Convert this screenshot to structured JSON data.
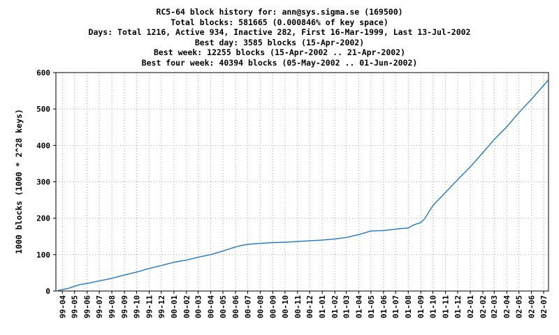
{
  "chart_data": {
    "type": "line",
    "title_lines": [
      "RC5-64 block history for: ann@sys.sigma.se (169500)",
      "Total blocks: 581665 (0.000846% of key space)",
      "Days: Total 1216,  Active 934, Inactive 282, First 16-Mar-1999, Last 13-Jul-2002",
      "Best day: 3585 blocks (15-Apr-2002)",
      "Best week: 12255 blocks (15-Apr-2002 .. 21-Apr-2002)",
      "Best four week: 40394 blocks (05-May-2002 .. 01-Jun-2002)"
    ],
    "xlabel": "",
    "ylabel": "1000 blocks (1000 * 2^28 keys)",
    "ylim": [
      0,
      600
    ],
    "yticks": [
      0,
      100,
      200,
      300,
      400,
      500,
      600
    ],
    "grid": true,
    "legend": "none",
    "line_color": "#1f77c4",
    "xlim": [
      "1999-03-16",
      "2002-07-13"
    ],
    "xticks": [
      {
        "date": "1999-04-01",
        "label": "99-04"
      },
      {
        "date": "1999-05-01",
        "label": "99-05"
      },
      {
        "date": "1999-06-01",
        "label": "99-06"
      },
      {
        "date": "1999-07-01",
        "label": "99-07"
      },
      {
        "date": "1999-08-01",
        "label": "99-08"
      },
      {
        "date": "1999-09-01",
        "label": "99-09"
      },
      {
        "date": "1999-10-01",
        "label": "99-10"
      },
      {
        "date": "1999-11-01",
        "label": "99-11"
      },
      {
        "date": "1999-12-01",
        "label": "99-12"
      },
      {
        "date": "2000-01-01",
        "label": "00-01"
      },
      {
        "date": "2000-02-01",
        "label": "00-02"
      },
      {
        "date": "2000-03-01",
        "label": "00-03"
      },
      {
        "date": "2000-04-01",
        "label": "00-04"
      },
      {
        "date": "2000-05-01",
        "label": "00-05"
      },
      {
        "date": "2000-06-01",
        "label": "00-06"
      },
      {
        "date": "2000-07-01",
        "label": "00-07"
      },
      {
        "date": "2000-08-01",
        "label": "00-08"
      },
      {
        "date": "2000-09-01",
        "label": "00-09"
      },
      {
        "date": "2000-10-01",
        "label": "00-10"
      },
      {
        "date": "2000-11-01",
        "label": "00-11"
      },
      {
        "date": "2000-12-01",
        "label": "00-12"
      },
      {
        "date": "2001-01-01",
        "label": "01-01"
      },
      {
        "date": "2001-02-01",
        "label": "01-02"
      },
      {
        "date": "2001-03-01",
        "label": "01-03"
      },
      {
        "date": "2001-04-01",
        "label": "01-04"
      },
      {
        "date": "2001-05-01",
        "label": "01-05"
      },
      {
        "date": "2001-06-01",
        "label": "01-06"
      },
      {
        "date": "2001-07-01",
        "label": "01-07"
      },
      {
        "date": "2001-08-01",
        "label": "01-08"
      },
      {
        "date": "2001-09-01",
        "label": "01-09"
      },
      {
        "date": "2001-10-01",
        "label": "01-10"
      },
      {
        "date": "2001-11-01",
        "label": "01-11"
      },
      {
        "date": "2001-12-01",
        "label": "01-12"
      },
      {
        "date": "2002-01-01",
        "label": "02-01"
      },
      {
        "date": "2002-02-01",
        "label": "02-02"
      },
      {
        "date": "2002-03-01",
        "label": "02-03"
      },
      {
        "date": "2002-04-01",
        "label": "02-04"
      },
      {
        "date": "2002-05-01",
        "label": "02-05"
      },
      {
        "date": "2002-06-01",
        "label": "02-06"
      },
      {
        "date": "2002-07-01",
        "label": "02-07"
      }
    ],
    "series": [
      {
        "x": [
          "1999-03-16",
          "1999-04-01",
          "1999-04-15",
          "1999-05-01",
          "1999-05-15",
          "1999-06-01",
          "1999-06-15",
          "1999-07-01",
          "1999-07-15",
          "1999-08-01",
          "1999-09-01",
          "1999-10-01",
          "1999-11-01",
          "1999-12-01",
          "2000-01-01",
          "2000-02-01",
          "2000-03-01",
          "2000-04-01",
          "2000-05-01",
          "2000-05-15",
          "2000-06-01",
          "2000-06-15",
          "2000-07-01",
          "2000-08-01",
          "2000-09-01",
          "2000-10-01",
          "2000-11-01",
          "2000-12-01",
          "2001-01-01",
          "2001-02-01",
          "2001-03-01",
          "2001-04-01",
          "2001-05-01",
          "2001-06-01",
          "2001-07-01",
          "2001-08-01",
          "2001-08-15",
          "2001-09-01",
          "2001-09-10",
          "2001-10-01",
          "2001-11-01",
          "2001-12-01",
          "2002-01-01",
          "2002-02-01",
          "2002-03-01",
          "2002-04-01",
          "2002-05-01",
          "2002-06-01",
          "2002-07-01",
          "2002-07-13"
        ],
        "values": [
          0,
          4,
          7,
          13,
          18,
          21,
          24,
          28,
          31,
          35,
          44,
          52,
          62,
          70,
          79,
          85,
          93,
          100,
          110,
          115,
          121,
          125,
          128,
          131,
          133,
          134,
          136,
          138,
          140,
          143,
          147,
          155,
          165,
          166,
          170,
          173,
          182,
          188,
          198,
          235,
          271,
          306,
          341,
          380,
          416,
          451,
          490,
          527,
          565,
          580
        ]
      }
    ]
  }
}
